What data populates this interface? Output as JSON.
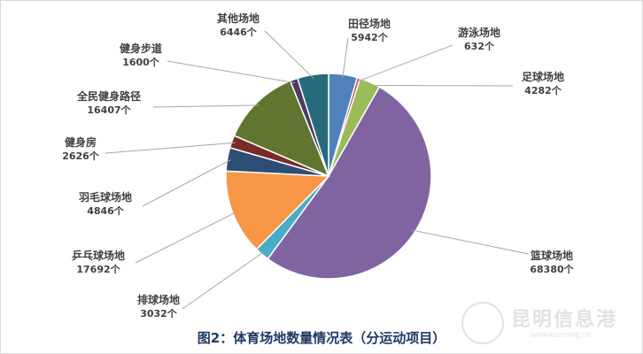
{
  "chart_data": {
    "type": "pie",
    "title": "图2：体育场地数量情况表（分运动项目）",
    "categories": [
      "田径场地",
      "游泳场地",
      "足球场地",
      "篮球场地",
      "排球场地",
      "乒乓球场地",
      "羽毛球场地",
      "健身房",
      "全民健身路径",
      "健身步道",
      "其他场地"
    ],
    "values": [
      5942,
      632,
      4282,
      68380,
      3032,
      17692,
      4846,
      2626,
      16407,
      1600,
      6446
    ],
    "value_labels": [
      "5942个",
      "632个",
      "4282个",
      "68380个",
      "3032个",
      "17692个",
      "4846个",
      "2626个",
      "16407个",
      "1600个",
      "6446个"
    ],
    "colors": [
      "#4f81bd",
      "#c0504d",
      "#9bbb59",
      "#8064a2",
      "#4bacc6",
      "#f79646",
      "#2c4d75",
      "#772c2a",
      "#5f7530",
      "#4d3b62",
      "#276a7c"
    ],
    "start_angle_deg": 0,
    "direction": "clockwise",
    "legend": "none",
    "data_labels": "outside-with-leader-lines"
  },
  "watermark": {
    "name": "昆明信息港",
    "url": "www.kunming.cn"
  }
}
